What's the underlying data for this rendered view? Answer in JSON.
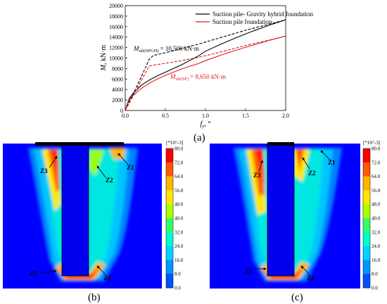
{
  "figure": {
    "panel_labels": [
      "(a)",
      "(b)",
      "(c)"
    ]
  },
  "chart_data": {
    "type": "line",
    "xlabel": "f y, °",
    "xlabel_var": "f",
    "xlabel_sub": "y",
    "xlabel_unit": ", °",
    "ylabel": "M, kN·m",
    "ylabel_var": "M",
    "ylabel_unit": ", kN·m",
    "xlim": [
      0,
      2.0
    ],
    "ylim": [
      0,
      20000
    ],
    "xticks": [
      0.0,
      0.5,
      1.0,
      1.5,
      2.0
    ],
    "xtick_labels": [
      "0.0",
      "0.5",
      "1.0",
      "1.5",
      "2.0"
    ],
    "yticks": [
      0,
      2000,
      4000,
      6000,
      8000,
      10000,
      12000,
      14000,
      16000,
      18000,
      20000
    ],
    "ytick_labels": [
      "0",
      "2000",
      "4000",
      "6000",
      "8000",
      "10000",
      "12000",
      "14000",
      "16000",
      "18000",
      "20000"
    ],
    "legend_position": "top-right",
    "series": [
      {
        "name": "Suction pile- Gravity hybrid foundation",
        "color": "#000000",
        "style": "solid",
        "x": [
          0.0,
          0.05,
          0.1,
          0.2,
          0.3,
          0.4,
          0.5,
          0.6,
          0.7,
          0.8,
          0.9,
          1.0,
          1.2,
          1.4,
          1.6,
          1.8,
          2.0
        ],
        "y": [
          0,
          2300,
          3300,
          4800,
          5800,
          6600,
          7300,
          8000,
          8700,
          9500,
          10300,
          11300,
          12700,
          14000,
          15200,
          16300,
          17300
        ]
      },
      {
        "name": "Suction pile foundation",
        "color": "#e41a1c",
        "style": "solid",
        "x": [
          0.0,
          0.05,
          0.1,
          0.2,
          0.3,
          0.4,
          0.5,
          0.6,
          0.7,
          0.8,
          0.9,
          1.0,
          1.2,
          1.4,
          1.6,
          1.8,
          2.0
        ],
        "y": [
          0,
          2000,
          2900,
          4200,
          5200,
          6000,
          6700,
          7300,
          7900,
          8400,
          8900,
          9500,
          10600,
          11600,
          12500,
          13400,
          14200
        ]
      },
      {
        "name": "",
        "color": "#000000",
        "style": "dashed",
        "x": [
          0.0,
          0.1,
          0.2,
          0.3,
          0.35,
          0.5,
          0.7,
          0.9,
          1.1,
          1.3,
          1.5,
          1.7,
          1.9,
          2.0
        ],
        "y": [
          0,
          3200,
          6400,
          9800,
          10500,
          11000,
          11800,
          12600,
          13500,
          14400,
          15300,
          16100,
          16900,
          17300
        ]
      },
      {
        "name": "",
        "color": "#e41a1c",
        "style": "dashed",
        "x": [
          0.0,
          0.1,
          0.2,
          0.3,
          0.35,
          0.5,
          0.7,
          0.9,
          1.1,
          1.3,
          1.5,
          1.7,
          1.9,
          2.0
        ],
        "y": [
          0,
          2800,
          5700,
          8500,
          8650,
          9000,
          9500,
          10100,
          10800,
          11600,
          12400,
          13100,
          13800,
          14200
        ]
      }
    ],
    "annotations": [
      {
        "label": "M",
        "sub": "ult(SPGH)",
        "value": " = 10,500 kN·m",
        "color": "#000000"
      },
      {
        "label": "M",
        "sub": "ult(SP)",
        "value": " = 8,650 kN·m",
        "color": "#e41a1c"
      }
    ]
  },
  "contour_panels": [
    {
      "label": "(b)",
      "zones": [
        "Z1",
        "Z2",
        "Z3",
        "Z4",
        "Z5"
      ]
    },
    {
      "label": "(c)",
      "zones": [
        "Z1",
        "Z2",
        "Z3",
        "Z4",
        "Z5"
      ]
    }
  ],
  "colorbar": {
    "title": "[*10^-3]",
    "ticks": [
      "80.0",
      "72.0",
      "64.0",
      "56.0",
      "48.0",
      "40.0",
      "32.0",
      "24.0",
      "16.0",
      "8.0",
      "0.0"
    ],
    "colors": [
      "#ff0000",
      "#ff5a00",
      "#ffb400",
      "#ffe600",
      "#aaff00",
      "#33ff66",
      "#00ffcc",
      "#00d4ff",
      "#0096ff",
      "#0050ff",
      "#0000ff"
    ]
  }
}
